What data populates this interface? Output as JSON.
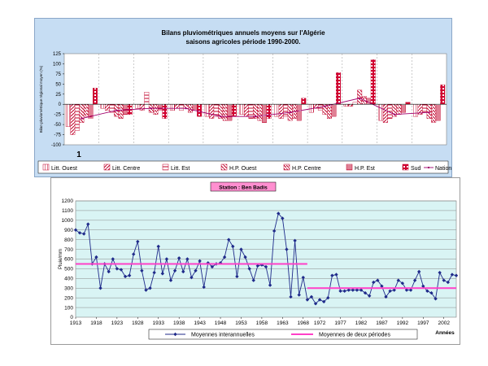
{
  "colors": {
    "top_background": "#c6ddf3",
    "plot_background": "#ffffff",
    "bottom_plot_background": "#d9f4f4",
    "station_badge": "#ff8fd0",
    "interannual_series": "#1f2a8a",
    "period_means": "#ff40c8",
    "national_line": "#a0006e",
    "bar_outline": "#c0002a",
    "sud_bar": "#d10030"
  },
  "chart_data": [
    {
      "type": "bar",
      "title": "Bilans pluviométriques annuels moyens sur l'Algérie",
      "subtitle": "saisons agricoles période 1990-2000.",
      "xlabel": "1",
      "ylabel": "Bilan pluviométrique régional moyen (%)",
      "ylim": [
        -100,
        125
      ],
      "yticks": [
        -100,
        -75,
        -50,
        -25,
        0,
        25,
        50,
        75,
        100,
        125
      ],
      "yticks_display": [
        "-100",
        "-75",
        "-50",
        "-25",
        "0",
        "25",
        "50",
        "75",
        "100",
        "125"
      ],
      "grid": true,
      "legend_position": "bottom",
      "groups": 11,
      "series": [
        {
          "name": "Litt. Ouest",
          "values": [
            -55,
            -10,
            -10,
            -15,
            -30,
            -25,
            -30,
            -20,
            -5,
            -40,
            -30
          ]
        },
        {
          "name": "Litt. Centre",
          "values": [
            -75,
            -15,
            -15,
            -10,
            -35,
            -30,
            -35,
            -10,
            -5,
            -45,
            -25
          ]
        },
        {
          "name": "Litt. Est",
          "values": [
            -65,
            -20,
            30,
            -15,
            -30,
            -35,
            -30,
            -15,
            5,
            -35,
            -20
          ]
        },
        {
          "name": "H.P. Ouest",
          "values": [
            -45,
            -30,
            -20,
            -10,
            -35,
            -35,
            -40,
            -25,
            35,
            -30,
            -35
          ]
        },
        {
          "name": "H.P. Centre",
          "values": [
            -30,
            -35,
            -25,
            -20,
            -40,
            -40,
            -35,
            -35,
            20,
            -25,
            -45
          ]
        },
        {
          "name": "H.P. Est",
          "values": [
            -35,
            -25,
            -15,
            -15,
            -40,
            -45,
            -40,
            -30,
            15,
            -20,
            -40
          ]
        },
        {
          "name": "Sud",
          "values": [
            40,
            -25,
            -35,
            -30,
            -30,
            -35,
            15,
            78,
            110,
            5,
            48
          ]
        },
        {
          "name": "National",
          "values": [
            -35,
            -15,
            -10,
            -10,
            -30,
            -30,
            -20,
            -5,
            15,
            -25,
            -20
          ]
        }
      ]
    },
    {
      "type": "line",
      "title": "Station : Ben Badis",
      "xlabel": "Années",
      "ylabel": "Pluie/mm",
      "ylim": [
        0,
        1200
      ],
      "yticks": [
        0,
        100,
        200,
        300,
        400,
        500,
        600,
        700,
        800,
        900,
        1000,
        1100,
        1200
      ],
      "xlim": [
        1913,
        2005
      ],
      "xticks": [
        1913,
        1918,
        1923,
        1928,
        1933,
        1938,
        1943,
        1948,
        1953,
        1958,
        1963,
        1968,
        1972,
        1977,
        1982,
        1987,
        1992,
        1997,
        2002
      ],
      "grid": true,
      "legend_position": "bottom",
      "series": [
        {
          "name": "Moyennes interannuelles",
          "x": [
            1913,
            1914,
            1915,
            1916,
            1917,
            1918,
            1919,
            1920,
            1921,
            1922,
            1923,
            1924,
            1925,
            1926,
            1927,
            1928,
            1929,
            1930,
            1931,
            1932,
            1933,
            1934,
            1935,
            1936,
            1937,
            1938,
            1939,
            1940,
            1941,
            1942,
            1943,
            1944,
            1945,
            1946,
            1947,
            1948,
            1949,
            1950,
            1951,
            1952,
            1953,
            1954,
            1955,
            1956,
            1957,
            1958,
            1959,
            1960,
            1961,
            1962,
            1963,
            1964,
            1965,
            1966,
            1967,
            1968,
            1969,
            1970,
            1971,
            1972,
            1973,
            1974,
            1975,
            1976,
            1977,
            1978,
            1979,
            1980,
            1981,
            1982,
            1983,
            1984,
            1985,
            1986,
            1987,
            1988,
            1989,
            1990,
            1991,
            1992,
            1993,
            1994,
            1995,
            1996,
            1997,
            1998,
            1999,
            2000,
            2001,
            2002,
            2003,
            2004,
            2005
          ],
          "values": [
            900,
            870,
            860,
            960,
            550,
            620,
            300,
            550,
            470,
            600,
            500,
            490,
            420,
            430,
            650,
            780,
            480,
            280,
            300,
            460,
            730,
            450,
            600,
            380,
            480,
            610,
            470,
            600,
            410,
            480,
            580,
            310,
            560,
            520,
            550,
            560,
            620,
            800,
            730,
            420,
            700,
            620,
            500,
            380,
            530,
            540,
            520,
            330,
            890,
            1070,
            1020,
            700,
            210,
            790,
            230,
            410,
            180,
            210,
            140,
            180,
            160,
            200,
            430,
            440,
            270,
            270,
            280,
            280,
            280,
            280,
            250,
            220,
            360,
            380,
            320,
            210,
            270,
            280,
            380,
            350,
            280,
            280,
            380,
            470,
            320,
            270,
            250,
            190,
            460,
            380,
            360,
            440,
            430
          ]
        },
        {
          "name": "Moyennes de deux périodes",
          "segments": [
            {
              "x": [
                1913,
                1969
              ],
              "y": 550
            },
            {
              "x": [
                1969,
                2005
              ],
              "y": 300
            }
          ]
        }
      ]
    }
  ]
}
